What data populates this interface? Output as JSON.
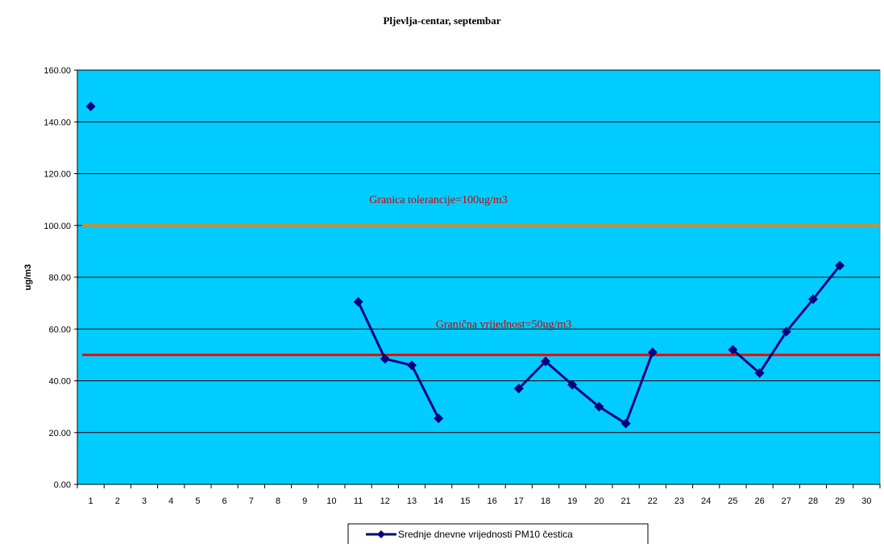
{
  "chart_data": {
    "type": "line",
    "title": "Pljevlja-centar, septembar",
    "xlabel": "",
    "ylabel": "ug/m3",
    "ylim": [
      0,
      160
    ],
    "yticks": [
      "0.00",
      "20.00",
      "40.00",
      "60.00",
      "80.00",
      "100.00",
      "120.00",
      "140.00",
      "160.00"
    ],
    "ytick_values": [
      0,
      20,
      40,
      60,
      80,
      100,
      120,
      140,
      160
    ],
    "categories": [
      "1",
      "2",
      "3",
      "4",
      "5",
      "6",
      "7",
      "8",
      "9",
      "10",
      "11",
      "12",
      "13",
      "14",
      "15",
      "16",
      "17",
      "18",
      "19",
      "20",
      "21",
      "22",
      "23",
      "24",
      "25",
      "26",
      "27",
      "28",
      "29",
      "30"
    ],
    "grid": true,
    "background_color": "#00CCFF",
    "series": [
      {
        "name": "Srednje dnevne vrijednosti PM10 čestica",
        "color": "#000080",
        "values": [
          146,
          null,
          null,
          null,
          null,
          null,
          null,
          null,
          null,
          null,
          70.5,
          48.5,
          46,
          25.5,
          null,
          null,
          37,
          47.5,
          38.5,
          30,
          23.5,
          51,
          null,
          null,
          52,
          43,
          59,
          71.5,
          84.5,
          null
        ]
      }
    ],
    "reference_lines": [
      {
        "label": "Granica tolerancije=100ug/m3",
        "value": 100,
        "color": "#FF8000",
        "label_color": "#CC0000"
      },
      {
        "label": "Granična vrijednost=50ug/m3",
        "value": 50,
        "color": "#FF0000",
        "label_color": "#CC0000"
      }
    ],
    "legend_position": "bottom-center"
  }
}
